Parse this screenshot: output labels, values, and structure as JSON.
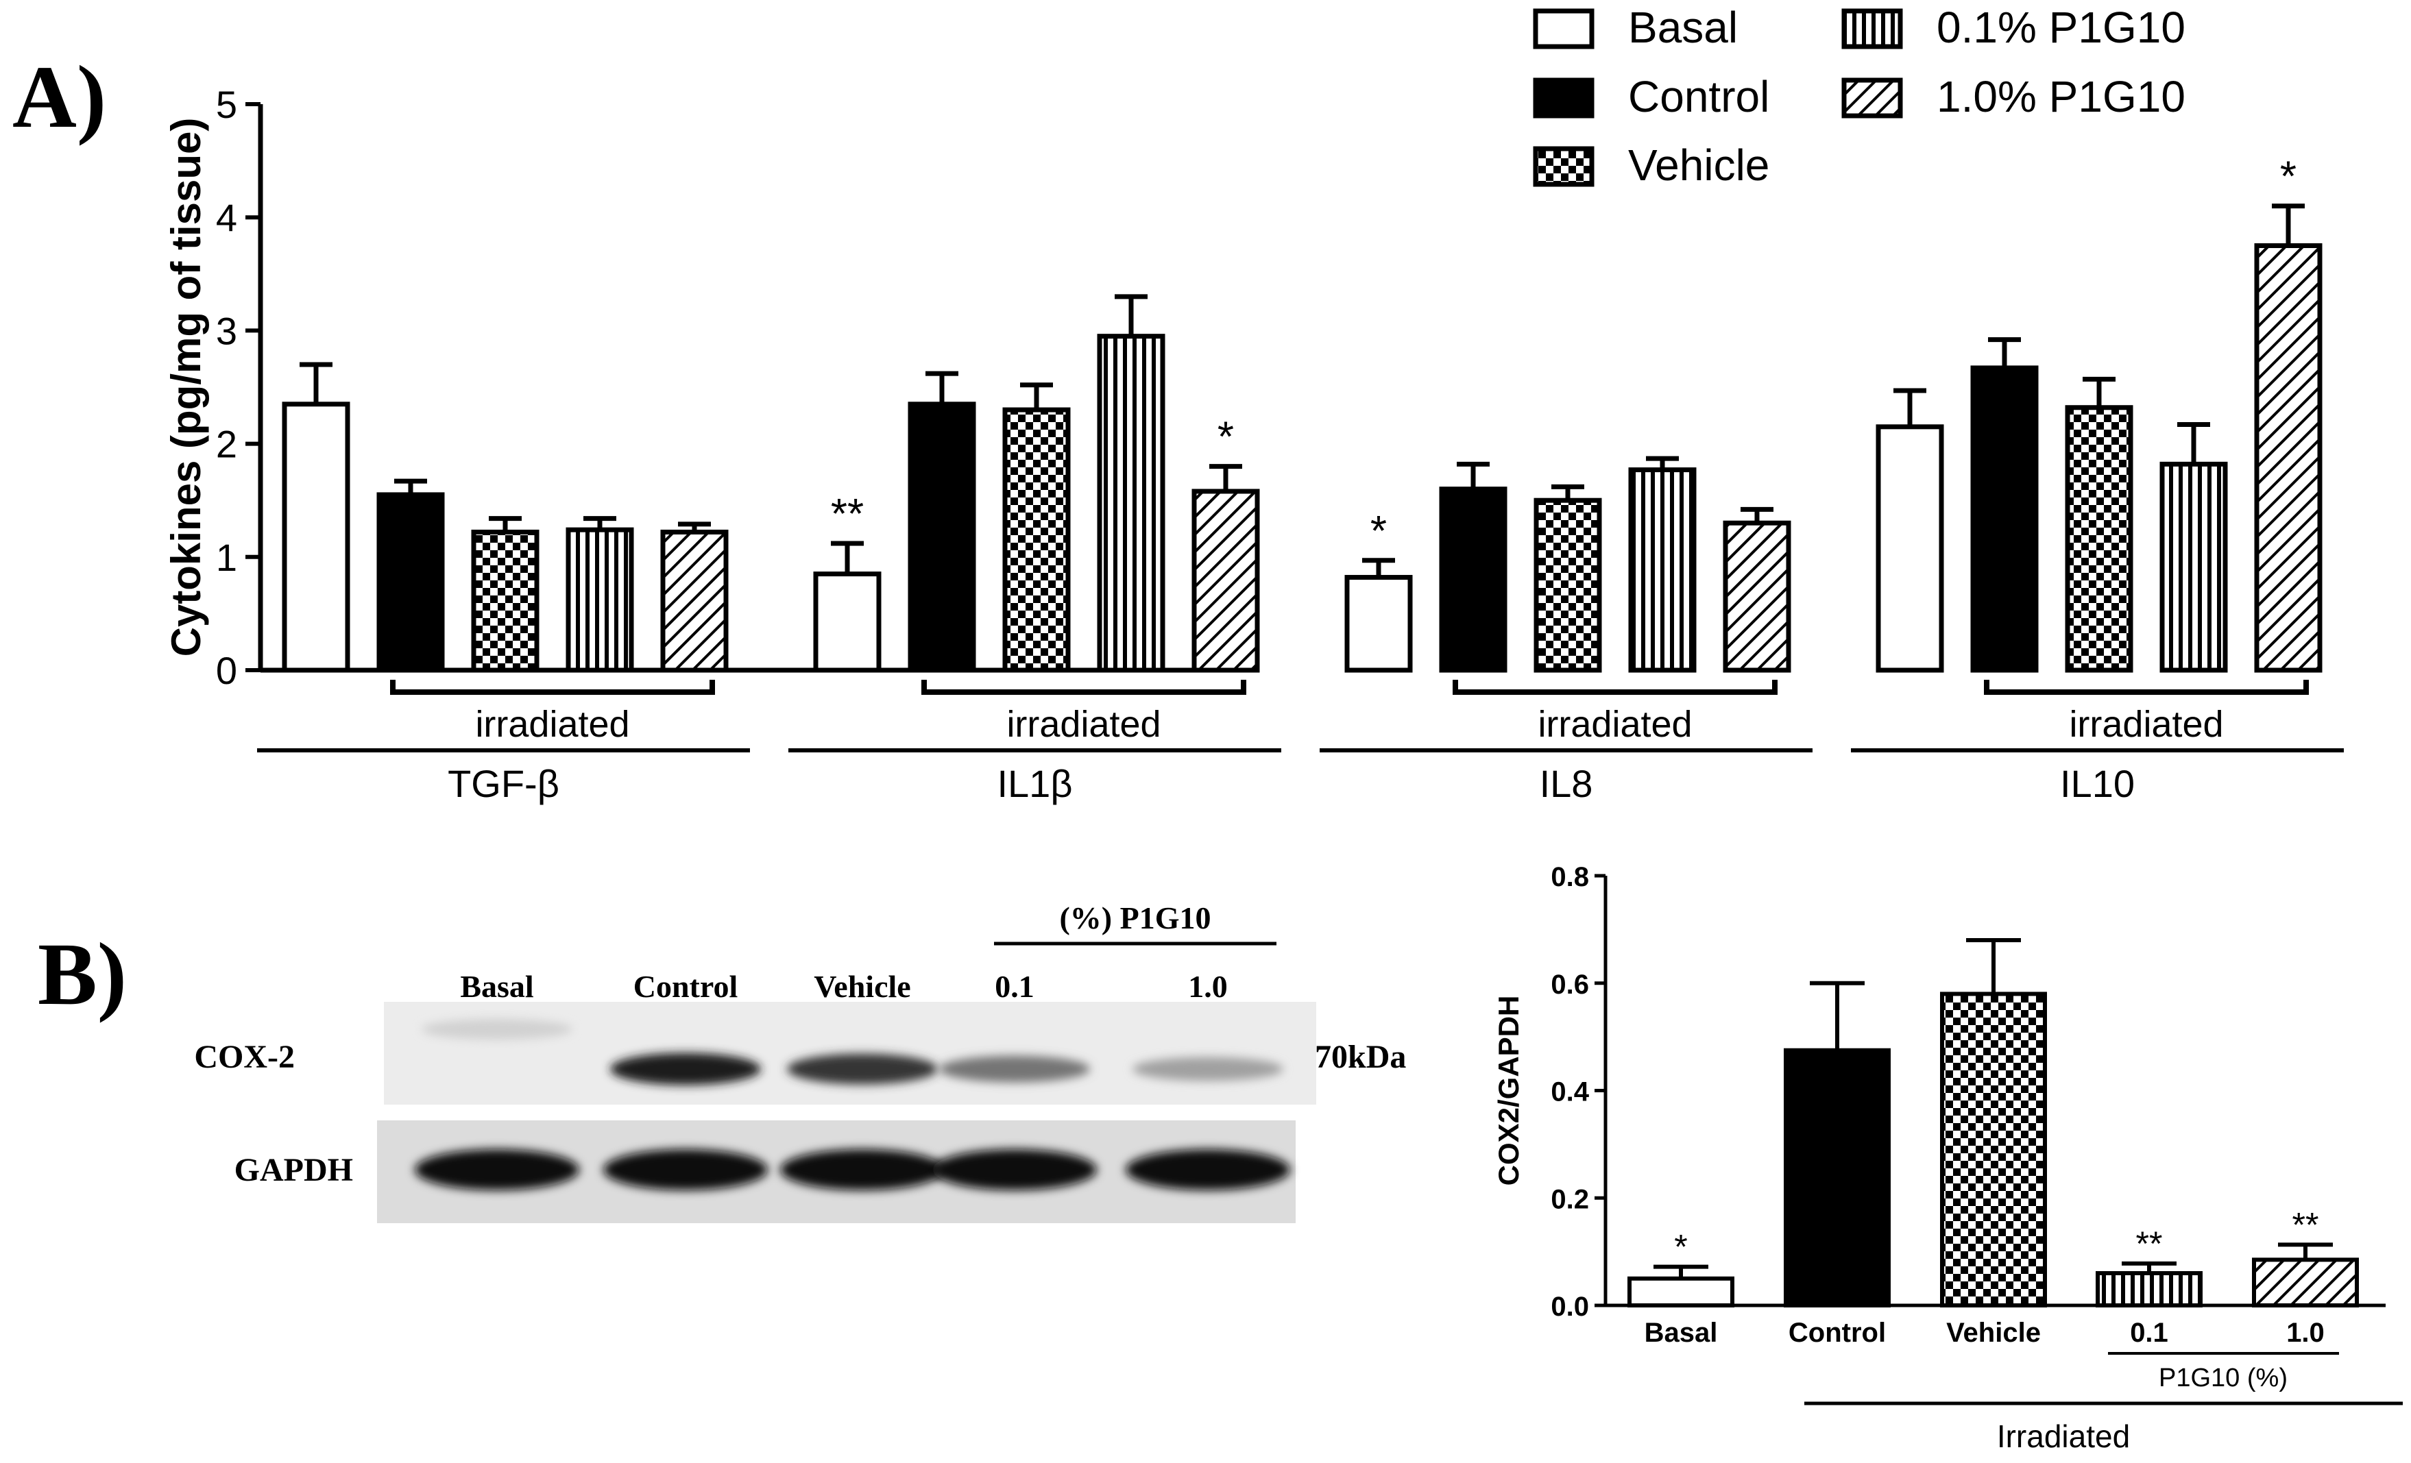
{
  "panel_a_letter": "A)",
  "panel_b_letter": "B)",
  "chart_data": [
    {
      "type": "bar",
      "ylabel": "Cytokines (pg/mg of tissue)",
      "ylim": [
        0,
        5
      ],
      "yticks": [
        "0",
        "1",
        "2",
        "3",
        "4",
        "5"
      ],
      "legend_position": "top-right",
      "legend": [
        "Basal",
        "Control",
        "Vehicle",
        "0.1% P1G10",
        "1.0% P1G10"
      ],
      "group_sublabel": "irradiated",
      "groups": [
        {
          "name": "TGF-β",
          "values": [
            2.35,
            1.55,
            1.22,
            1.24,
            1.22
          ],
          "errors": [
            0.35,
            0.12,
            0.12,
            0.1,
            0.07
          ],
          "marks": [
            "",
            "",
            "",
            "",
            ""
          ]
        },
        {
          "name": "IL1β",
          "values": [
            0.85,
            2.35,
            2.3,
            2.95,
            1.58
          ],
          "errors": [
            0.27,
            0.27,
            0.22,
            0.35,
            0.22
          ],
          "marks": [
            "**",
            "",
            "",
            "",
            "*"
          ]
        },
        {
          "name": "IL8",
          "values": [
            0.82,
            1.6,
            1.5,
            1.77,
            1.3
          ],
          "errors": [
            0.15,
            0.22,
            0.12,
            0.1,
            0.12
          ],
          "marks": [
            "*",
            "",
            "",
            "",
            ""
          ]
        },
        {
          "name": "IL10",
          "values": [
            2.15,
            2.67,
            2.32,
            1.82,
            3.75
          ],
          "errors": [
            0.32,
            0.25,
            0.25,
            0.35,
            0.35
          ],
          "marks": [
            "",
            "",
            "",
            "",
            "*"
          ]
        }
      ]
    },
    {
      "type": "bar",
      "ylabel": "COX2/GAPDH",
      "ylim": [
        0,
        0.8
      ],
      "yticks": [
        "0.0",
        "0.2",
        "0.4",
        "0.6",
        "0.8"
      ],
      "categories": [
        "Basal",
        "Control",
        "Vehicle",
        "0.1",
        "1.0"
      ],
      "values": [
        0.05,
        0.475,
        0.58,
        0.06,
        0.085
      ],
      "errors": [
        0.022,
        0.125,
        0.1,
        0.018,
        0.028
      ],
      "marks": [
        "*",
        "",
        "",
        "**",
        "**"
      ],
      "sub_bracket_label": "P1G10 (%)",
      "bracket_label": "Irradiated"
    }
  ],
  "blot": {
    "header_p1g10": "(%) P1G10",
    "lanes": [
      "Basal",
      "Control",
      "Vehicle",
      "0.1",
      "1.0"
    ],
    "rows": [
      "COX-2",
      "GAPDH"
    ],
    "marker": "70kDa",
    "cox2_intensity": [
      0.12,
      0.95,
      0.85,
      0.55,
      0.35
    ]
  }
}
